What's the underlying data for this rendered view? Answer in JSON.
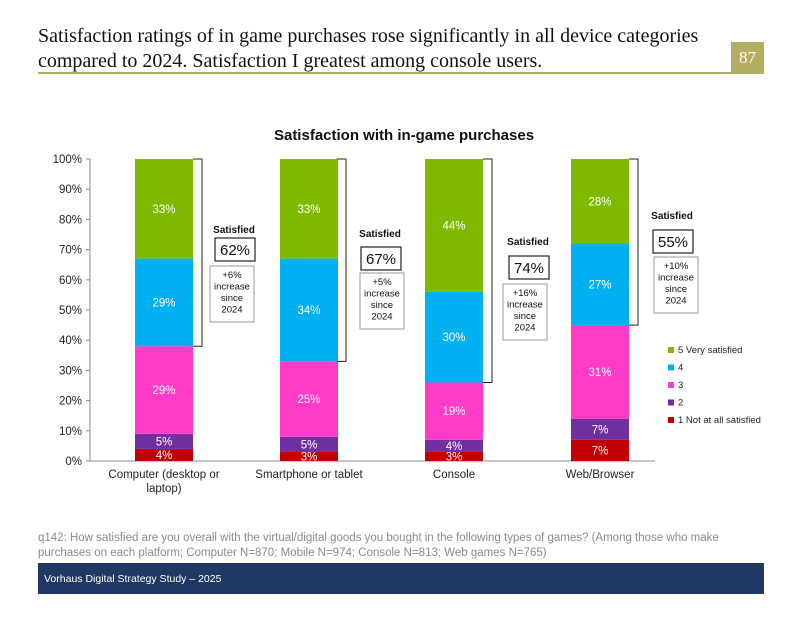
{
  "slide": {
    "headline": "Satisfaction ratings of in game purchases rose significantly in all device categories compared to 2024. Satisfaction I greatest among console users.",
    "page_number": "87",
    "question": "q142: How satisfied are you overall with the virtual/digital goods you bought in the following types of games? (Among those who make purchases on each platform; Computer N=870; Mobile N=974; Console N=813; Web games N=765)",
    "footer": "Vorhaus Digital Strategy Study – 2025",
    "colors": {
      "accent": "#b5ad5f",
      "footer_bg": "#1f3864"
    }
  },
  "chart_data": {
    "type": "bar",
    "stacked": true,
    "title": "Satisfaction with in-game purchases",
    "categories": [
      "Computer (desktop or laptop)",
      "Smartphone or tablet",
      "Console",
      "Web/Browser"
    ],
    "series": [
      {
        "name": "1 Not at all satisfied",
        "color": "#c00000",
        "values": [
          4,
          3,
          3,
          7
        ]
      },
      {
        "name": "2",
        "color": "#7030a0",
        "values": [
          5,
          5,
          4,
          7
        ]
      },
      {
        "name": "3",
        "color": "#ff3cc7",
        "values": [
          29,
          25,
          19,
          31
        ]
      },
      {
        "name": "4",
        "color": "#00b0f0",
        "values": [
          29,
          34,
          30,
          27
        ]
      },
      {
        "name": "5 Very satisfied",
        "color": "#7fba00",
        "values": [
          33,
          33,
          44,
          28
        ]
      }
    ],
    "data_labels": [
      [
        "4%",
        "5%",
        "29%",
        "29%",
        "33%"
      ],
      [
        "3%",
        "5%",
        "25%",
        "34%",
        "33%"
      ],
      [
        "3%",
        "4%",
        "19%",
        "30%",
        "44%"
      ],
      [
        "7%",
        "7%",
        "31%",
        "27%",
        "28%"
      ]
    ],
    "ylim": [
      0,
      100
    ],
    "yticks": [
      "0%",
      "10%",
      "20%",
      "30%",
      "40%",
      "50%",
      "60%",
      "70%",
      "80%",
      "90%",
      "100%"
    ],
    "legend_position": "right",
    "annotations": [
      {
        "label": "Satisfied",
        "value": "62%",
        "change": [
          "+6%",
          "increase",
          "since",
          "2024"
        ],
        "range": [
          38,
          100
        ]
      },
      {
        "label": "Satisfied",
        "value": "67%",
        "change": [
          "+5%",
          "increase",
          "since",
          "2024"
        ],
        "range": [
          33,
          100
        ]
      },
      {
        "label": "Satisfied",
        "value": "74%",
        "change": [
          "+16%",
          "increase",
          "since",
          "2024"
        ],
        "range": [
          26,
          100
        ]
      },
      {
        "label": "Satisfied",
        "value": "55%",
        "change": [
          "+10%",
          "increase",
          "since",
          "2024"
        ],
        "range": [
          45,
          100
        ]
      }
    ]
  }
}
